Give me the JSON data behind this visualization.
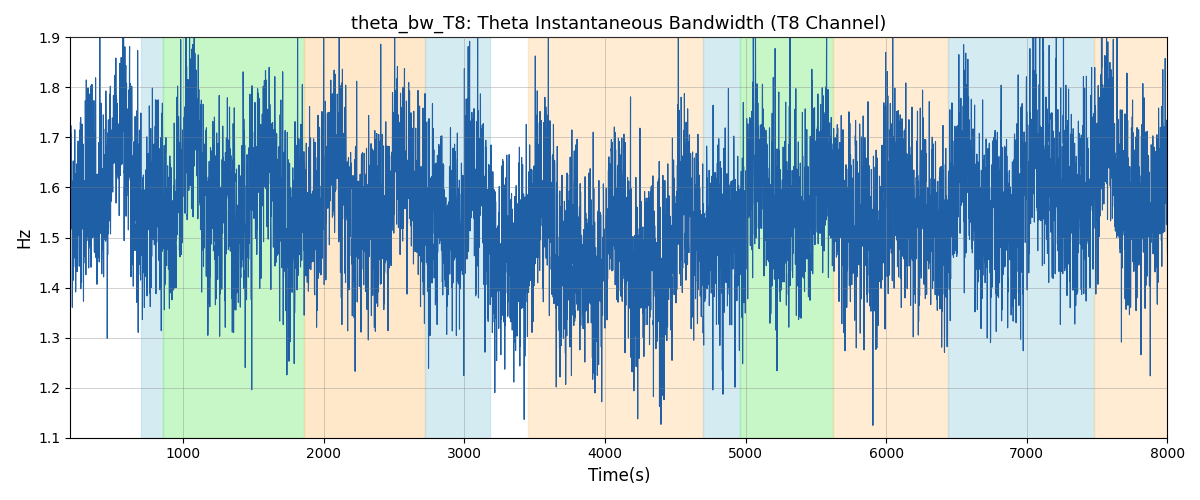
{
  "title": "theta_bw_T8: Theta Instantaneous Bandwidth (T8 Channel)",
  "xlabel": "Time(s)",
  "ylabel": "Hz",
  "xlim": [
    200,
    8000
  ],
  "ylim": [
    1.1,
    1.9
  ],
  "yticks": [
    1.1,
    1.2,
    1.3,
    1.4,
    1.5,
    1.6,
    1.7,
    1.8,
    1.9
  ],
  "xticks": [
    1000,
    2000,
    3000,
    4000,
    5000,
    6000,
    7000,
    8000
  ],
  "line_color": "#1f5fa6",
  "line_width": 0.8,
  "bg_color": "#ffffff",
  "bands": [
    {
      "xmin": 700,
      "xmax": 860,
      "color": "#add8e6",
      "alpha": 0.5
    },
    {
      "xmin": 860,
      "xmax": 1860,
      "color": "#90ee90",
      "alpha": 0.5
    },
    {
      "xmin": 1860,
      "xmax": 2720,
      "color": "#ffd59e",
      "alpha": 0.55
    },
    {
      "xmin": 2720,
      "xmax": 3180,
      "color": "#add8e6",
      "alpha": 0.5
    },
    {
      "xmin": 3450,
      "xmax": 4700,
      "color": "#ffd59e",
      "alpha": 0.45
    },
    {
      "xmin": 4700,
      "xmax": 4960,
      "color": "#add8e6",
      "alpha": 0.5
    },
    {
      "xmin": 4960,
      "xmax": 5620,
      "color": "#90ee90",
      "alpha": 0.5
    },
    {
      "xmin": 5620,
      "xmax": 6440,
      "color": "#ffd59e",
      "alpha": 0.45
    },
    {
      "xmin": 6440,
      "xmax": 7480,
      "color": "#add8e6",
      "alpha": 0.5
    },
    {
      "xmin": 7480,
      "xmax": 8100,
      "color": "#ffd59e",
      "alpha": 0.45
    }
  ],
  "seed": 42,
  "n_points": 7800,
  "x_start": 200,
  "x_end": 8000,
  "figsize": [
    12.0,
    5.0
  ],
  "dpi": 100
}
